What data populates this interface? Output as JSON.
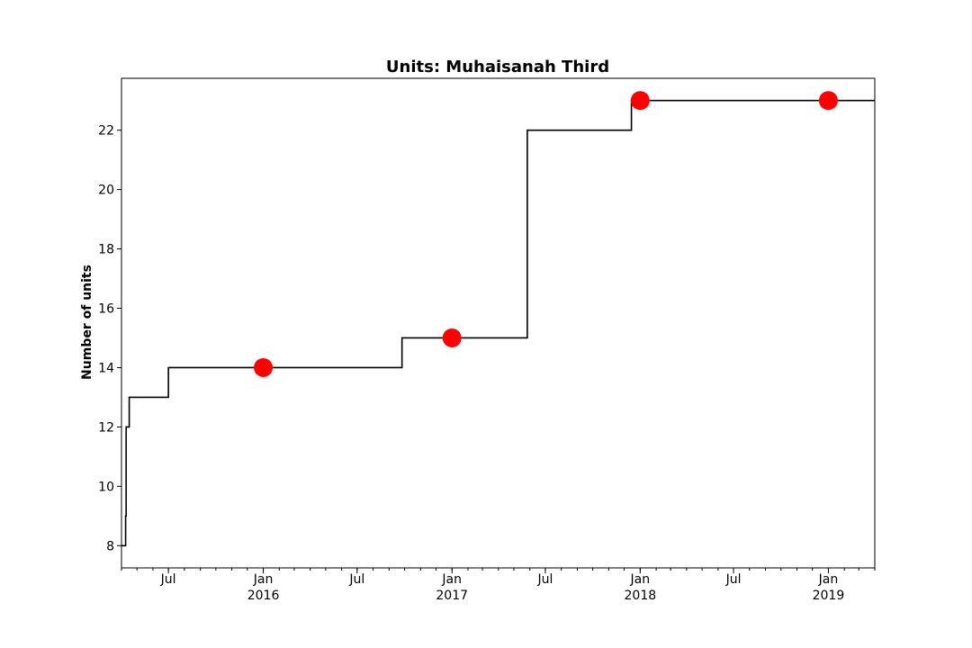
{
  "chart_data": {
    "type": "line",
    "title": "Units: Muhaisanah Third",
    "xlabel": "",
    "ylabel": "Number of units",
    "x_range": [
      "2015-04-01",
      "2019-04-01"
    ],
    "ylim": [
      7.25,
      23.75
    ],
    "y_ticks": [
      8,
      10,
      12,
      14,
      16,
      18,
      20,
      22
    ],
    "x_ticks": [
      {
        "date": "2015-07-01",
        "label": "Jul",
        "sublabel": ""
      },
      {
        "date": "2016-01-01",
        "label": "Jan",
        "sublabel": "2016"
      },
      {
        "date": "2016-07-01",
        "label": "Jul",
        "sublabel": ""
      },
      {
        "date": "2017-01-01",
        "label": "Jan",
        "sublabel": "2017"
      },
      {
        "date": "2017-07-01",
        "label": "Jul",
        "sublabel": ""
      },
      {
        "date": "2018-01-01",
        "label": "Jan",
        "sublabel": "2018"
      },
      {
        "date": "2018-07-01",
        "label": "Jul",
        "sublabel": ""
      },
      {
        "date": "2019-01-01",
        "label": "Jan",
        "sublabel": "2019"
      }
    ],
    "grid": false,
    "series": [
      {
        "style": "step",
        "color": "#000000",
        "points": [
          {
            "x": "2015-04-01",
            "y": 8
          },
          {
            "x": "2015-04-08",
            "y": 8
          },
          {
            "x": "2015-04-09",
            "y": 9
          },
          {
            "x": "2015-04-10",
            "y": 12
          },
          {
            "x": "2015-04-16",
            "y": 13
          },
          {
            "x": "2015-07-01",
            "y": 14
          },
          {
            "x": "2016-09-26",
            "y": 15
          },
          {
            "x": "2017-05-27",
            "y": 22
          },
          {
            "x": "2017-12-15",
            "y": 23
          },
          {
            "x": "2019-04-01",
            "y": 23
          }
        ]
      },
      {
        "style": "markers",
        "color": "#ff0000",
        "points": [
          {
            "x": "2016-01-01",
            "y": 14
          },
          {
            "x": "2017-01-01",
            "y": 15
          },
          {
            "x": "2018-01-01",
            "y": 23
          },
          {
            "x": "2019-01-01",
            "y": 23
          }
        ]
      }
    ]
  }
}
